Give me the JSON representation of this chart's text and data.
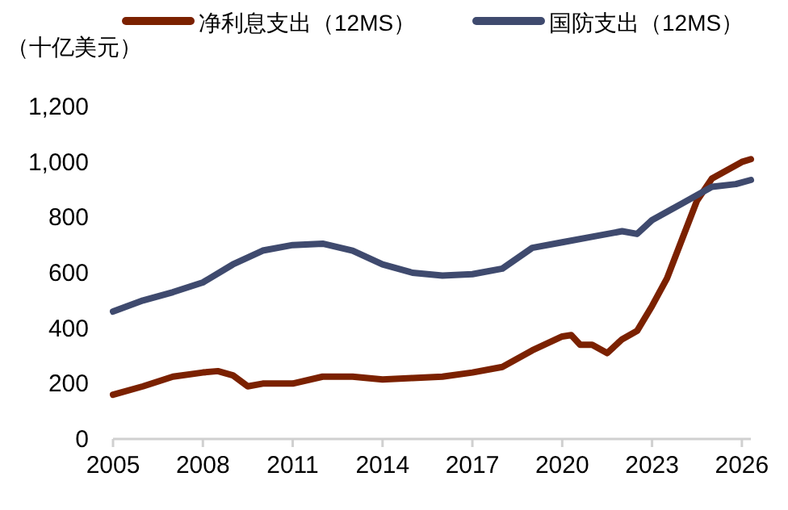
{
  "chart_data": {
    "type": "line",
    "ylabel": "（十亿美元）",
    "legend": "top",
    "grid": false,
    "marker": "none",
    "line_style": "solid",
    "xlim": [
      2005,
      2026.3
    ],
    "xticks": [
      2005,
      2008,
      2011,
      2014,
      2017,
      2020,
      2023,
      2026
    ],
    "ylim": [
      0,
      1200
    ],
    "yticks": [
      0,
      200,
      400,
      600,
      800,
      {
        "value": 1000,
        "label": "1,000"
      },
      {
        "value": 1200,
        "label": "1,200"
      }
    ],
    "series": [
      {
        "name": "净利息支出（12MS）",
        "color": "#7b2100",
        "x": [
          2005,
          2006,
          2007,
          2008,
          2008.5,
          2009,
          2009.5,
          2010,
          2011,
          2012,
          2013,
          2014,
          2015,
          2016,
          2017,
          2018,
          2019,
          2020,
          2020.3,
          2020.6,
          2021,
          2021.5,
          2022,
          2022.5,
          2023,
          2023.5,
          2024,
          2024.5,
          2025,
          2025.5,
          2026,
          2026.3
        ],
        "values": [
          160,
          190,
          225,
          240,
          245,
          230,
          190,
          200,
          200,
          225,
          225,
          215,
          220,
          225,
          240,
          260,
          320,
          370,
          375,
          340,
          340,
          310,
          360,
          390,
          480,
          580,
          720,
          860,
          940,
          970,
          1000,
          1010
        ]
      },
      {
        "name": "国防支出（12MS）",
        "color": "#3f4a6e",
        "x": [
          2005,
          2006,
          2007,
          2008,
          2009,
          2010,
          2011,
          2012,
          2013,
          2014,
          2015,
          2016,
          2017,
          2018,
          2019,
          2020,
          2021,
          2022,
          2022.5,
          2023,
          2024,
          2025,
          2025.8,
          2026.3
        ],
        "values": [
          460,
          500,
          530,
          565,
          630,
          680,
          700,
          705,
          680,
          630,
          600,
          590,
          595,
          615,
          690,
          710,
          730,
          750,
          740,
          790,
          850,
          910,
          920,
          935
        ]
      }
    ]
  }
}
